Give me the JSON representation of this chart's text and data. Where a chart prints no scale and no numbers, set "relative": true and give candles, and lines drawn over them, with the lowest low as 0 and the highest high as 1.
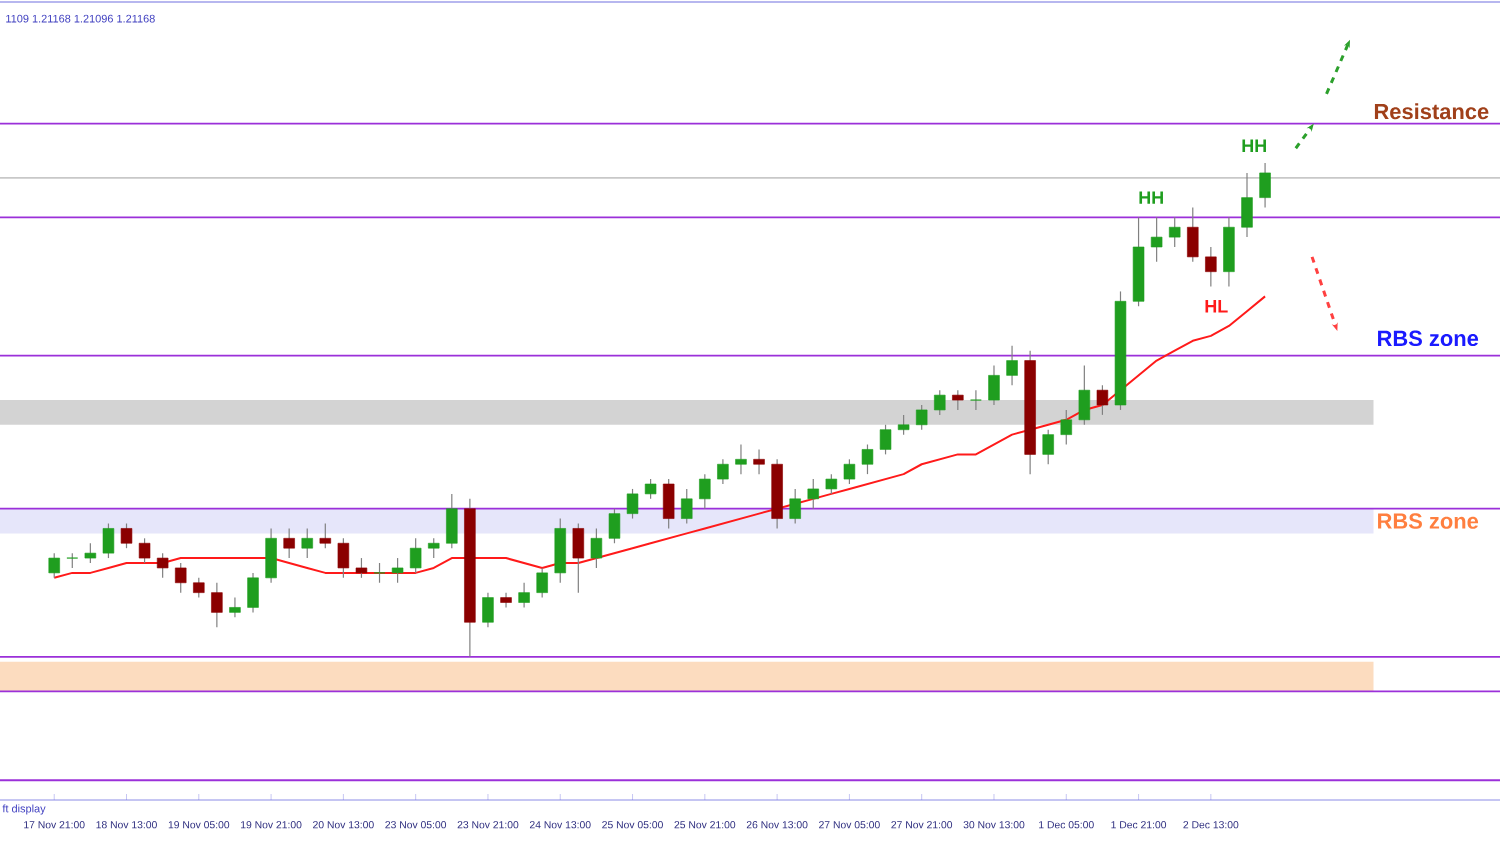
{
  "chart_data": {
    "type": "candlestick",
    "relative": true,
    "categories": [
      "17 Nov 21:00",
      null,
      null,
      null,
      "18 Nov 13:00",
      null,
      null,
      null,
      "19 Nov 05:00",
      null,
      null,
      null,
      "19 Nov 21:00",
      null,
      null,
      null,
      "20 Nov 13:00",
      null,
      null,
      null,
      "23 Nov 05:00",
      null,
      null,
      null,
      "23 Nov 21:00",
      null,
      null,
      null,
      "24 Nov 13:00",
      null,
      null,
      null,
      "25 Nov 05:00",
      null,
      null,
      null,
      "25 Nov 21:00",
      null,
      null,
      null,
      "26 Nov 13:00",
      null,
      null,
      null,
      "27 Nov 05:00",
      null,
      null,
      null,
      "27 Nov 21:00",
      null,
      null,
      null,
      "30 Nov 13:00",
      null,
      null,
      null,
      "1 Dec 05:00",
      null,
      null,
      null,
      "1 Dec 21:00",
      null,
      null,
      null,
      "2 Dec 13:00",
      null,
      null,
      null
    ],
    "ohlc": [
      [
        0.17,
        0.21,
        0.16,
        0.2
      ],
      [
        0.2,
        0.21,
        0.18,
        0.2
      ],
      [
        0.2,
        0.23,
        0.19,
        0.21
      ],
      [
        0.21,
        0.27,
        0.2,
        0.26
      ],
      [
        0.26,
        0.27,
        0.22,
        0.23
      ],
      [
        0.23,
        0.24,
        0.19,
        0.2
      ],
      [
        0.2,
        0.21,
        0.16,
        0.18
      ],
      [
        0.18,
        0.19,
        0.13,
        0.15
      ],
      [
        0.15,
        0.16,
        0.12,
        0.13
      ],
      [
        0.13,
        0.15,
        0.06,
        0.09
      ],
      [
        0.09,
        0.12,
        0.08,
        0.1
      ],
      [
        0.1,
        0.17,
        0.09,
        0.16
      ],
      [
        0.16,
        0.26,
        0.15,
        0.24
      ],
      [
        0.24,
        0.26,
        0.2,
        0.22
      ],
      [
        0.22,
        0.26,
        0.2,
        0.24
      ],
      [
        0.24,
        0.27,
        0.22,
        0.23
      ],
      [
        0.23,
        0.24,
        0.16,
        0.18
      ],
      [
        0.18,
        0.2,
        0.16,
        0.17
      ],
      [
        0.17,
        0.19,
        0.15,
        0.17
      ],
      [
        0.17,
        0.2,
        0.15,
        0.18
      ],
      [
        0.18,
        0.24,
        0.17,
        0.22
      ],
      [
        0.22,
        0.24,
        0.2,
        0.23
      ],
      [
        0.23,
        0.33,
        0.22,
        0.3
      ],
      [
        0.3,
        0.32,
        0,
        0.07
      ],
      [
        0.07,
        0.13,
        0.06,
        0.12
      ],
      [
        0.12,
        0.13,
        0.1,
        0.11
      ],
      [
        0.11,
        0.15,
        0.1,
        0.13
      ],
      [
        0.13,
        0.18,
        0.12,
        0.17
      ],
      [
        0.17,
        0.28,
        0.15,
        0.26
      ],
      [
        0.26,
        0.27,
        0.13,
        0.2
      ],
      [
        0.2,
        0.26,
        0.18,
        0.24
      ],
      [
        0.24,
        0.3,
        0.23,
        0.29
      ],
      [
        0.29,
        0.34,
        0.28,
        0.33
      ],
      [
        0.33,
        0.36,
        0.32,
        0.35
      ],
      [
        0.35,
        0.36,
        0.26,
        0.28
      ],
      [
        0.28,
        0.34,
        0.27,
        0.32
      ],
      [
        0.32,
        0.37,
        0.3,
        0.36
      ],
      [
        0.36,
        0.4,
        0.35,
        0.39
      ],
      [
        0.39,
        0.43,
        0.37,
        0.4
      ],
      [
        0.4,
        0.42,
        0.37,
        0.39
      ],
      [
        0.39,
        0.4,
        0.26,
        0.28
      ],
      [
        0.28,
        0.34,
        0.27,
        0.32
      ],
      [
        0.32,
        0.36,
        0.3,
        0.34
      ],
      [
        0.34,
        0.37,
        0.33,
        0.36
      ],
      [
        0.36,
        0.4,
        0.35,
        0.39
      ],
      [
        0.39,
        0.43,
        0.37,
        0.42
      ],
      [
        0.42,
        0.47,
        0.41,
        0.46
      ],
      [
        0.46,
        0.49,
        0.45,
        0.47
      ],
      [
        0.47,
        0.51,
        0.46,
        0.5
      ],
      [
        0.5,
        0.54,
        0.49,
        0.53
      ],
      [
        0.53,
        0.54,
        0.5,
        0.52
      ],
      [
        0.52,
        0.54,
        0.5,
        0.52
      ],
      [
        0.52,
        0.59,
        0.51,
        0.57
      ],
      [
        0.57,
        0.63,
        0.55,
        0.6
      ],
      [
        0.6,
        0.62,
        0.37,
        0.41
      ],
      [
        0.41,
        0.46,
        0.39,
        0.45
      ],
      [
        0.45,
        0.5,
        0.43,
        0.48
      ],
      [
        0.48,
        0.59,
        0.47,
        0.54
      ],
      [
        0.54,
        0.55,
        0.49,
        0.51
      ],
      [
        0.51,
        0.74,
        0.5,
        0.72
      ],
      [
        0.72,
        0.89,
        0.71,
        0.83
      ],
      [
        0.83,
        0.89,
        0.8,
        0.85
      ],
      [
        0.85,
        0.89,
        0.83,
        0.87
      ],
      [
        0.87,
        0.91,
        0.8,
        0.81
      ],
      [
        0.81,
        0.83,
        0.75,
        0.78
      ],
      [
        0.78,
        0.89,
        0.75,
        0.87
      ],
      [
        0.87,
        0.98,
        0.85,
        0.93
      ],
      [
        0.93,
        1.0,
        0.91,
        0.98
      ]
    ],
    "series": [
      {
        "type": "line",
        "color": "#ff1a1a",
        "values": [
          0.16,
          0.17,
          0.17,
          0.18,
          0.19,
          0.19,
          0.19,
          0.2,
          0.2,
          0.2,
          0.2,
          0.2,
          0.2,
          0.19,
          0.18,
          0.17,
          0.17,
          0.17,
          0.17,
          0.17,
          0.17,
          0.18,
          0.2,
          0.2,
          0.2,
          0.2,
          0.19,
          0.18,
          0.19,
          0.19,
          0.2,
          0.21,
          0.22,
          0.23,
          0.24,
          0.25,
          0.26,
          0.27,
          0.28,
          0.29,
          0.3,
          0.31,
          0.32,
          0.33,
          0.34,
          0.35,
          0.36,
          0.37,
          0.39,
          0.4,
          0.41,
          0.41,
          0.43,
          0.45,
          0.46,
          0.47,
          0.48,
          0.5,
          0.51,
          0.54,
          0.57,
          0.6,
          0.62,
          0.64,
          0.65,
          0.67,
          0.7,
          0.73
        ]
      }
    ],
    "ref_lines": [
      {
        "axis": "y",
        "value": 1.08,
        "color": "#9b30d9"
      },
      {
        "axis": "y",
        "value": 0.97,
        "color": "#c8c8c8"
      },
      {
        "axis": "y",
        "value": 0.89,
        "color": "#9b30d9"
      },
      {
        "axis": "y",
        "value": 0.61,
        "color": "#9b30d9"
      },
      {
        "axis": "y",
        "value": 0.3,
        "color": "#9b30d9"
      },
      {
        "axis": "y",
        "value": 0,
        "color": "#9b30d9"
      },
      {
        "axis": "y",
        "value": -0.07,
        "color": "#9b30d9"
      },
      {
        "axis": "y",
        "value": -0.25,
        "color": "#9b30d9"
      }
    ],
    "bands": [
      {
        "axis": "y",
        "from": 0.47,
        "to": 0.52,
        "color": "#d3d3d3"
      },
      {
        "axis": "y",
        "from": 0.25,
        "to": 0.3,
        "color": "#e6e6fa"
      },
      {
        "axis": "y",
        "from": -0.07,
        "to": -0.01,
        "color": "#fcdcbf"
      }
    ],
    "annotations": [
      "1109 1.21168 1.21096 1.21168",
      "Resistance",
      "RBS zone",
      "RBS zone",
      "HH",
      "HH",
      "HL",
      "ft display"
    ]
  }
}
